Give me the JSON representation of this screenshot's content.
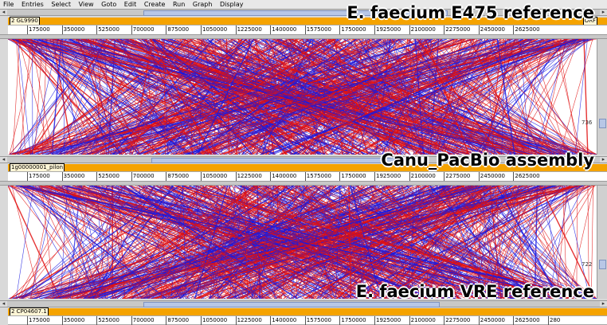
{
  "menu": [
    "File",
    "Entries",
    "Select",
    "View",
    "Goto",
    "Edit",
    "Create",
    "Run",
    "Graph",
    "Display"
  ],
  "tracks": [
    {
      "seq_label": "2 GL9990",
      "seq_label_right": "ORF",
      "title": "E. faecium E475 reference"
    },
    {
      "seq_label": "1g00000001_pilon",
      "title": "Canu_PacBio assembly"
    },
    {
      "seq_label": "2 CP04607.1",
      "title": "E. faecium VRE reference"
    }
  ],
  "ticks": [
    "175000",
    "350000",
    "525000",
    "700000",
    "875000",
    "1050000",
    "1225000",
    "1400000",
    "1575000",
    "1750000",
    "1925000",
    "2100000",
    "2275000",
    "2450000",
    "2625000"
  ],
  "bottom_last_tick": "280",
  "vscroll_labels": [
    "736",
    "722"
  ],
  "colors": {
    "forward": "#e01010",
    "reverse": "#1a1ae0",
    "seq": "#f5a300"
  }
}
